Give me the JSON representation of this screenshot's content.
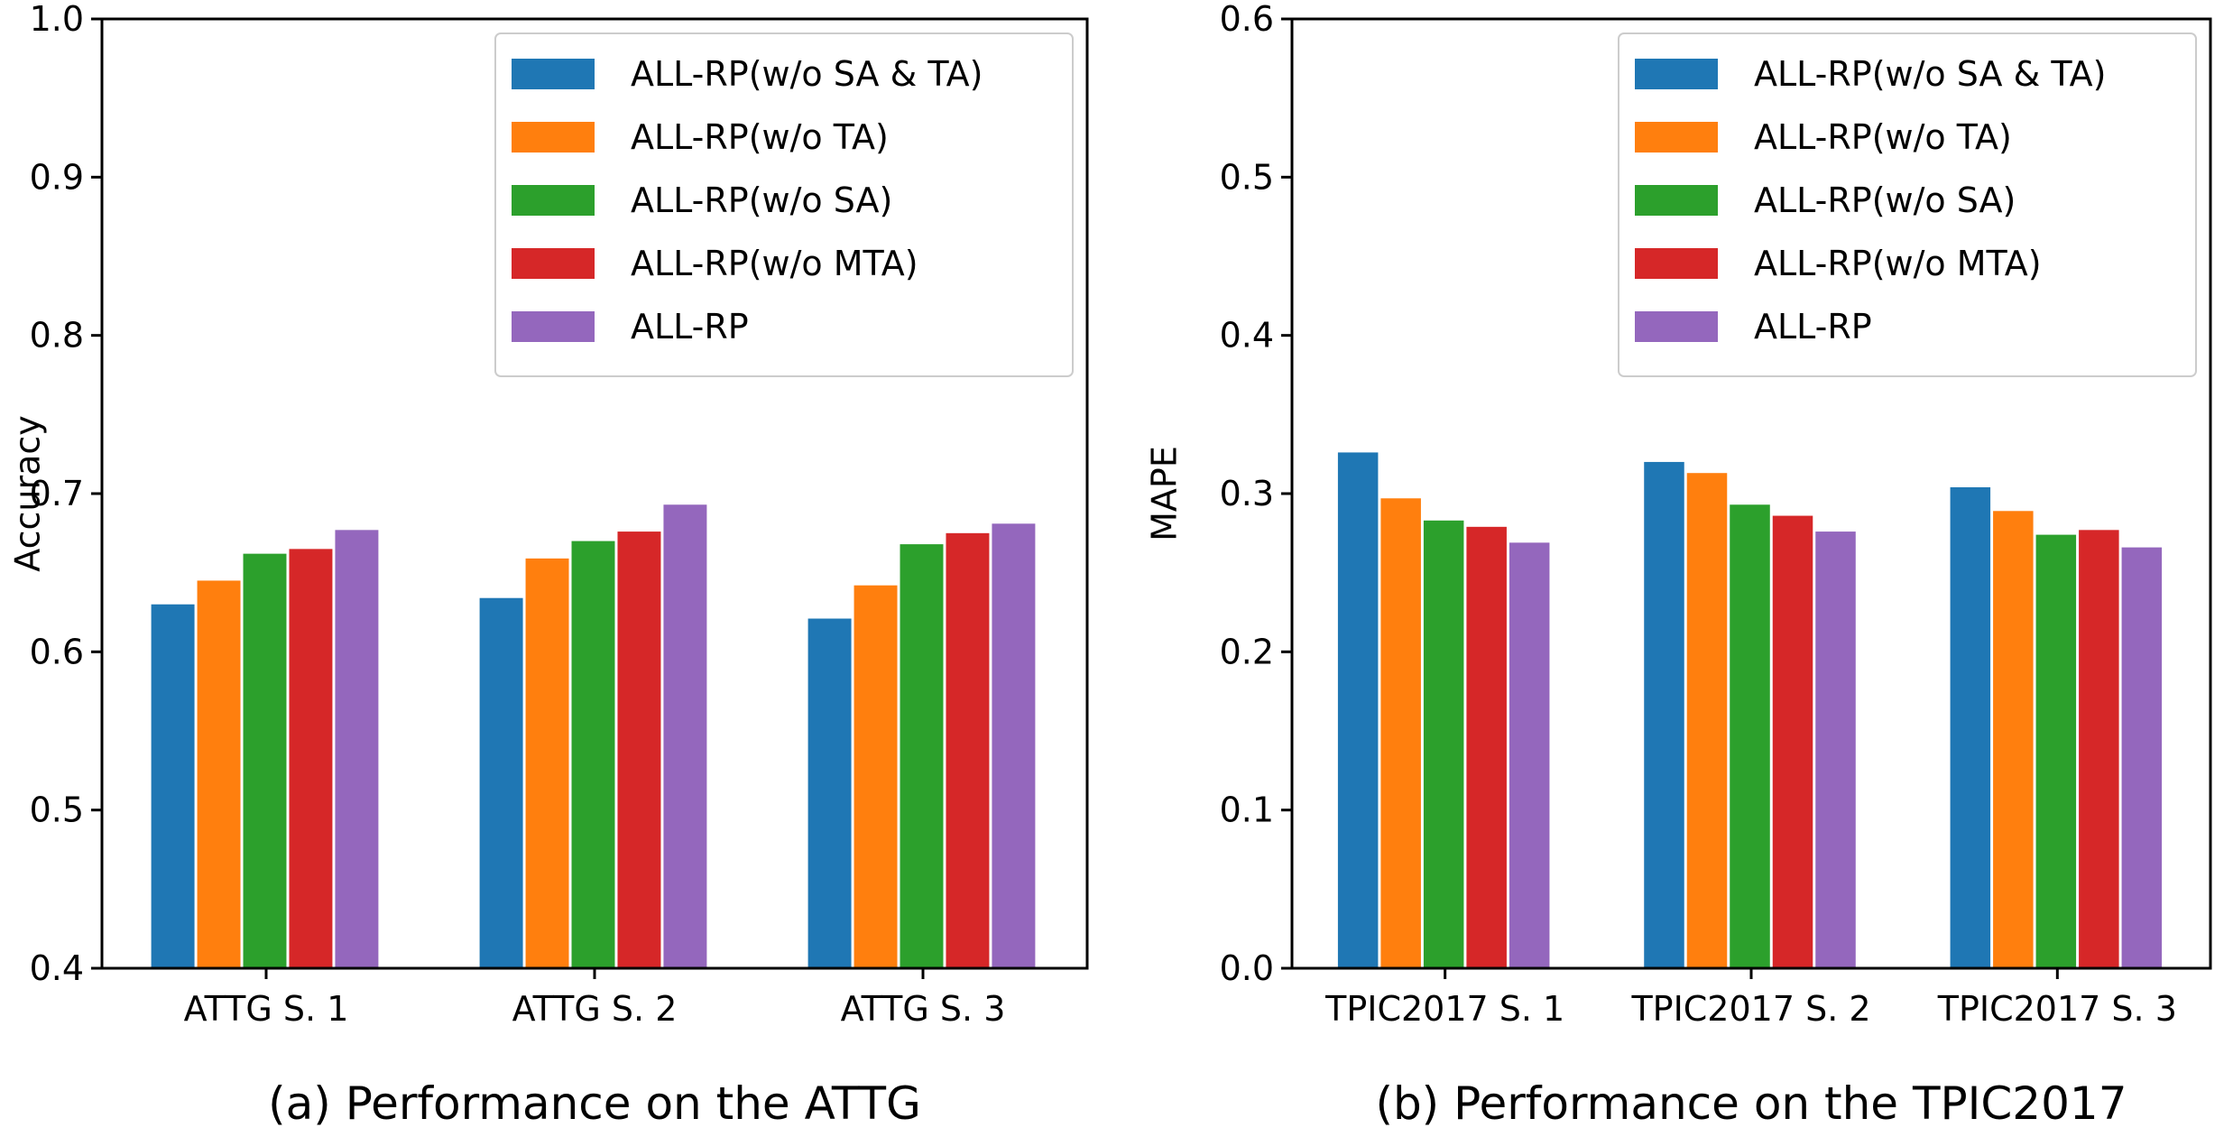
{
  "chart_data": [
    {
      "type": "bar",
      "caption": "(a) Performance on the ATTG",
      "title": "",
      "xlabel": "",
      "ylabel": "Accuracy",
      "ylim": [
        0.4,
        1.0
      ],
      "yticks": [
        "0.4",
        "0.5",
        "0.6",
        "0.7",
        "0.8",
        "0.9",
        "1.0"
      ],
      "categories": [
        "ATTG S. 1",
        "ATTG S. 2",
        "ATTG S. 3"
      ],
      "legend_position": "top-right",
      "grid": false,
      "series": [
        {
          "name": "ALL-RP(w/o SA & TA)",
          "color": "#1f77b4",
          "values": [
            0.63,
            0.634,
            0.621
          ]
        },
        {
          "name": "ALL-RP(w/o TA)",
          "color": "#ff7f0e",
          "values": [
            0.645,
            0.659,
            0.642
          ]
        },
        {
          "name": "ALL-RP(w/o SA)",
          "color": "#2ca02c",
          "values": [
            0.662,
            0.67,
            0.668
          ]
        },
        {
          "name": "ALL-RP(w/o MTA)",
          "color": "#d62728",
          "values": [
            0.665,
            0.676,
            0.675
          ]
        },
        {
          "name": "ALL-RP",
          "color": "#9467bd",
          "values": [
            0.677,
            0.693,
            0.681
          ]
        }
      ]
    },
    {
      "type": "bar",
      "caption": "(b) Performance on the TPIC2017",
      "title": "",
      "xlabel": "",
      "ylabel": "MAPE",
      "ylim": [
        0.0,
        0.6
      ],
      "yticks": [
        "0.0",
        "0.1",
        "0.2",
        "0.3",
        "0.4",
        "0.5",
        "0.6"
      ],
      "categories": [
        "TPIC2017 S. 1",
        "TPIC2017 S. 2",
        "TPIC2017 S. 3"
      ],
      "legend_position": "top-right",
      "grid": false,
      "series": [
        {
          "name": "ALL-RP(w/o SA & TA)",
          "color": "#1f77b4",
          "values": [
            0.326,
            0.32,
            0.304
          ]
        },
        {
          "name": "ALL-RP(w/o TA)",
          "color": "#ff7f0e",
          "values": [
            0.297,
            0.313,
            0.289
          ]
        },
        {
          "name": "ALL-RP(w/o SA)",
          "color": "#2ca02c",
          "values": [
            0.283,
            0.293,
            0.274
          ]
        },
        {
          "name": "ALL-RP(w/o MTA)",
          "color": "#d62728",
          "values": [
            0.279,
            0.286,
            0.277
          ]
        },
        {
          "name": "ALL-RP",
          "color": "#9467bd",
          "values": [
            0.269,
            0.276,
            0.266
          ]
        }
      ]
    }
  ]
}
